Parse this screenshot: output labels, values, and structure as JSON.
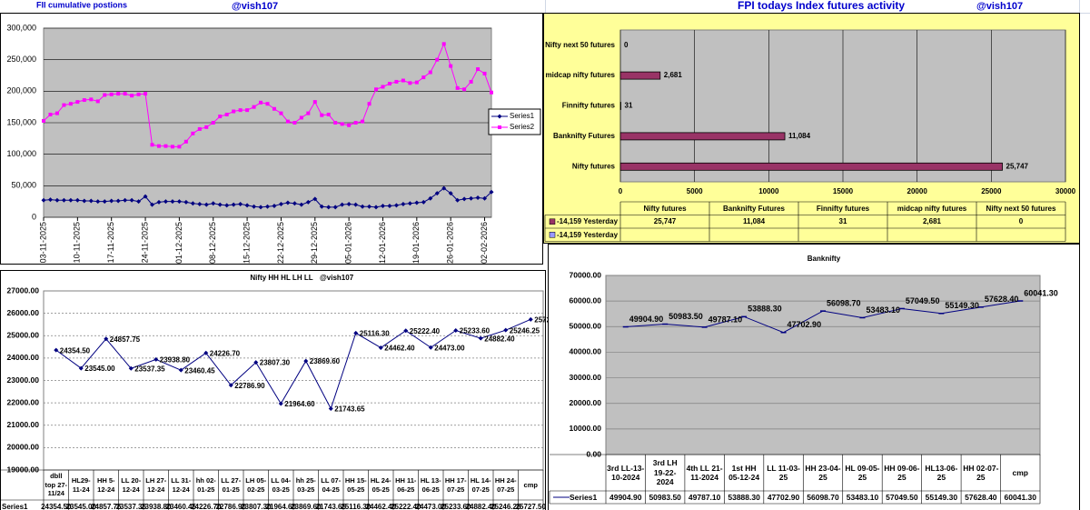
{
  "header": [
    "FII cumulative postions",
    "@vish107",
    "FPI todays Index futures activity",
    "@vish107"
  ],
  "chart_data": [
    {
      "type": "line",
      "categories": [
        "03-11-2025",
        null,
        null,
        null,
        null,
        "10-11-2025",
        null,
        null,
        null,
        null,
        "17-11-2025",
        null,
        null,
        null,
        null,
        "24-11-2025",
        null,
        null,
        null,
        null,
        "01-12-2025",
        null,
        null,
        null,
        null,
        "08-12-2025",
        null,
        null,
        null,
        null,
        "15-12-2025",
        null,
        null,
        null,
        null,
        "22-12-2025",
        null,
        null,
        null,
        null,
        "29-12-2025",
        null,
        null,
        null,
        null,
        "05-01-2026",
        null,
        null,
        null,
        null,
        "12-01-2026",
        null,
        null,
        null,
        null,
        "19-01-2026",
        null,
        null,
        null,
        null,
        "26-01-2026",
        null,
        null,
        null,
        null,
        "02-02-2026",
        null
      ],
      "series": [
        {
          "name": "Series1",
          "color": "#000080",
          "values": [
            27000,
            28000,
            27000,
            27000,
            27000,
            27000,
            26000,
            26000,
            25000,
            25000,
            26000,
            26000,
            27000,
            27000,
            25000,
            33000,
            20000,
            24000,
            25000,
            25000,
            25000,
            24000,
            22000,
            21000,
            20000,
            22000,
            20000,
            19000,
            20000,
            21000,
            19000,
            17000,
            16000,
            17000,
            18000,
            21000,
            23000,
            22000,
            20000,
            24000,
            29000,
            17000,
            16000,
            16000,
            20000,
            21000,
            20000,
            17000,
            17000,
            16000,
            18000,
            18000,
            19000,
            21000,
            22000,
            23000,
            24000,
            30000,
            38000,
            46000,
            38000,
            27000,
            29000,
            30000,
            31000,
            30000,
            40000
          ]
        },
        {
          "name": "Series2",
          "color": "#ff00ff",
          "values": [
            153000,
            163000,
            165000,
            178000,
            180000,
            183000,
            186000,
            187000,
            184000,
            194000,
            195000,
            196000,
            196000,
            193000,
            195000,
            196000,
            115000,
            113000,
            113000,
            112000,
            112000,
            120000,
            133000,
            140000,
            143000,
            150000,
            160000,
            163000,
            168000,
            170000,
            170000,
            175000,
            182000,
            180000,
            172000,
            165000,
            152000,
            150000,
            158000,
            165000,
            183000,
            162000,
            163000,
            150000,
            148000,
            146000,
            150000,
            152000,
            180000,
            203000,
            207000,
            212000,
            215000,
            217000,
            213000,
            214000,
            222000,
            230000,
            250000,
            275000,
            240000,
            205000,
            203000,
            215000,
            235000,
            228000,
            198000
          ]
        }
      ],
      "ylim": [
        0,
        300000
      ],
      "yticks": [
        0,
        {
          "value": 50000,
          "label": "50,000"
        },
        {
          "value": 100000,
          "label": "100,000"
        },
        {
          "value": 150000,
          "label": "150,000"
        },
        {
          "value": 200000,
          "label": "200,000"
        },
        {
          "value": 250000,
          "label": "250,000"
        },
        {
          "value": 300000,
          "label": "300,000"
        }
      ],
      "grid": true,
      "legend": "right"
    },
    {
      "type": "bar",
      "orientation": "horizontal",
      "categories": [
        "Nifty futures",
        "Banknifty Futures",
        "Finnifty futures",
        "midcap nifty futures",
        "Nifty next 50 futures"
      ],
      "series": [
        {
          "name": "-14,159 Yesterday",
          "color": "#993366",
          "values": [
            25747,
            11084,
            31,
            2681,
            0
          ],
          "value_labels": [
            "25,747",
            "11,084",
            "31",
            "2,681",
            "0"
          ]
        },
        {
          "name": "-14,159 Yesterday",
          "color": "#9999ff",
          "values": [
            null,
            null,
            null,
            null,
            null
          ]
        }
      ],
      "xlim": [
        0,
        30000
      ],
      "xticks": [
        0,
        5000,
        10000,
        15000,
        20000,
        25000,
        30000
      ],
      "grid": true
    },
    {
      "type": "line",
      "title": "Nifty HH HL LH LL",
      "subtitle": "@vish107",
      "categories": [
        "dbll top 27-11/24",
        "HL29-11-24",
        "HH 5-12-24",
        "LL 20-12-24",
        "LH 27-12-24",
        "LL 31-12-24",
        "hh 02-01-25",
        "LL 27-01-25",
        "LH 05-02-25",
        "LL 04-03-25",
        "hh 25-03-25",
        "LL 07-04-25",
        "HH 15-05-25",
        "HL 24-05-25",
        "HH 11-06-25",
        "HL 13-06-25",
        "HH 17-07-25",
        "HL 14-07-25",
        "HH 24-07-25",
        "cmp"
      ],
      "series": [
        {
          "name": "Series1",
          "color": "#000080",
          "values": [
            24354.5,
            23545,
            24857.75,
            23537.35,
            23938.8,
            23460.45,
            24226.7,
            22786.9,
            23807.3,
            21964.6,
            23869.6,
            21743.65,
            25116.3,
            24462.4,
            25222.4,
            24473,
            25233.6,
            24882.4,
            25246.25,
            25727.5
          ],
          "value_labels": [
            "24354.50",
            "23545.00",
            "24857.75",
            "23537.35",
            "23938.80",
            "23460.45",
            "24226.70",
            "22786.90",
            "23807.30",
            "21964.60",
            "23869.60",
            "21743.65",
            "25116.30",
            "24462.40",
            "25222.40",
            "24473.00",
            "25233.60",
            "24882.40",
            "25246.25",
            "25727.50"
          ]
        }
      ],
      "ylim": [
        19000,
        27000
      ],
      "yticks": [
        {
          "value": 19000,
          "label": "19000.00"
        },
        {
          "value": 20000,
          "label": "20000.00"
        },
        {
          "value": 21000,
          "label": "21000.00"
        },
        {
          "value": 22000,
          "label": "22000.00"
        },
        {
          "value": 23000,
          "label": "23000.00"
        },
        {
          "value": 24000,
          "label": "24000.00"
        },
        {
          "value": 25000,
          "label": "25000.00"
        },
        {
          "value": 26000,
          "label": "26000.00"
        },
        {
          "value": 27000,
          "label": "27000.00"
        }
      ],
      "grid": true
    },
    {
      "type": "line",
      "title": "Banknifty",
      "categories": [
        "3rd LL-13-10-2024",
        "3rd LH 19-22-2024",
        "4th LL 21-11-2024",
        "1st HH 05-12-24",
        "LL 11-03-25",
        "HH 23-04-25",
        "HL 09-05-25",
        "HH 09-06-25",
        "HL13-06-25",
        "HH 02-07-25",
        "cmp"
      ],
      "series": [
        {
          "name": "Series1",
          "color": "#000080",
          "values": [
            49904.9,
            50983.5,
            49787.1,
            53888.3,
            47702.9,
            56098.7,
            53483.1,
            57049.5,
            55149.3,
            57628.4,
            60041.3
          ],
          "value_labels": [
            "49904.90",
            "50983.50",
            "49787.10",
            "53888.30",
            "47702.90",
            "56098.70",
            "53483.10",
            "57049.50",
            "55149.30",
            "57628.40",
            "60041.30"
          ]
        }
      ],
      "ylim": [
        0,
        70000
      ],
      "yticks": [
        {
          "value": 0,
          "label": "0.00"
        },
        {
          "value": 10000,
          "label": "10000.00"
        },
        {
          "value": 20000,
          "label": "20000.00"
        },
        {
          "value": 30000,
          "label": "30000.00"
        },
        {
          "value": 40000,
          "label": "40000.00"
        },
        {
          "value": 50000,
          "label": "50000.00"
        },
        {
          "value": 60000,
          "label": "60000.00"
        },
        {
          "value": 70000,
          "label": "70000.00"
        }
      ],
      "grid": true
    }
  ]
}
